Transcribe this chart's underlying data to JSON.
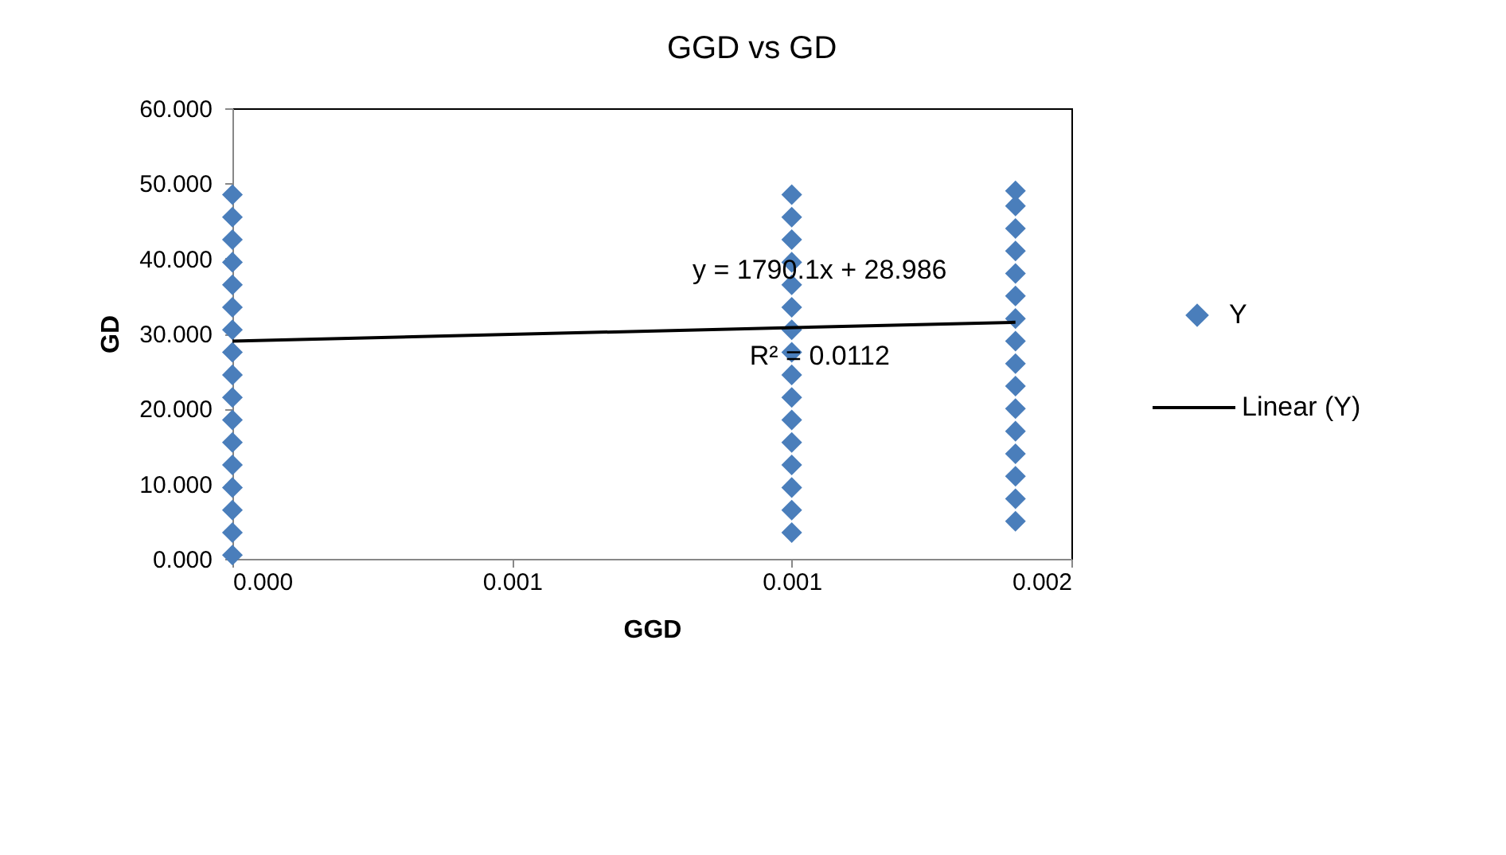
{
  "chart_data": {
    "type": "scatter",
    "title": "GGD vs GD",
    "xlabel": "GGD",
    "ylabel": "GD",
    "xlim": [
      0,
      0.0015
    ],
    "xticks": [
      {
        "value": 0,
        "label": "0.000"
      },
      {
        "value": 0.0005,
        "label": "0.001"
      },
      {
        "value": 0.001,
        "label": "0.001"
      },
      {
        "value": 0.0015,
        "label": "0.002"
      }
    ],
    "ylim": [
      0,
      60
    ],
    "yticks": [
      {
        "value": 0,
        "label": "0.000"
      },
      {
        "value": 10,
        "label": "10.000"
      },
      {
        "value": 20,
        "label": "20.000"
      },
      {
        "value": 30,
        "label": "30.000"
      },
      {
        "value": 40,
        "label": "40.000"
      },
      {
        "value": 50,
        "label": "50.000"
      },
      {
        "value": 60,
        "label": "60.000"
      }
    ],
    "grid": false,
    "legend": "right",
    "series": [
      {
        "name": "Y",
        "color": "#4a7ebb",
        "marker": "diamond",
        "x": [
          0,
          0,
          0,
          0,
          0,
          0,
          0,
          0,
          0,
          0,
          0,
          0,
          0,
          0,
          0,
          0,
          0,
          0.001,
          0.001,
          0.001,
          0.001,
          0.001,
          0.001,
          0.001,
          0.001,
          0.001,
          0.001,
          0.001,
          0.001,
          0.001,
          0.001,
          0.001,
          0.001,
          0.0014,
          0.0014,
          0.0014,
          0.0014,
          0.0014,
          0.0014,
          0.0014,
          0.0014,
          0.0014,
          0.0014,
          0.0014,
          0.0014,
          0.0014,
          0.0014,
          0.0014,
          0.0014
        ],
        "values": [
          0.5,
          3.5,
          6.5,
          9.5,
          12.5,
          15.5,
          18.5,
          21.5,
          24.5,
          27.5,
          30.5,
          33.5,
          36.5,
          39.5,
          42.5,
          45.5,
          48.5,
          3.5,
          6.5,
          9.5,
          12.5,
          15.5,
          18.5,
          21.5,
          24.5,
          27.5,
          30.5,
          33.5,
          36.5,
          39.5,
          42.5,
          45.5,
          48.5,
          5,
          8,
          11,
          14,
          17,
          20,
          23,
          26,
          29,
          32,
          35,
          38,
          41,
          44,
          47,
          49
        ]
      },
      {
        "name": "Linear (Y)",
        "type": "line",
        "color": "#000000",
        "marker": "none",
        "x": [
          0,
          0.0014
        ],
        "values": [
          29.0,
          31.5
        ]
      }
    ],
    "annotations": [
      "y = 1790.1x + 28.986",
      "R² = 0.0112"
    ]
  }
}
